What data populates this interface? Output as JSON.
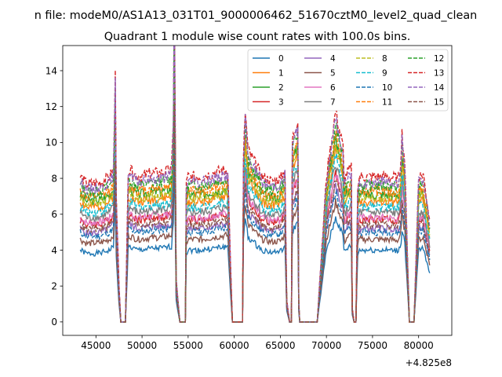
{
  "chart_data": {
    "type": "line",
    "suptitle": "n file: modeM0/AS1A13_031T01_9000006462_51670cztM0_level2_quad_clean",
    "title": "Quadrant 1 module wise count rates with 100.0s bins.",
    "xlabel": "",
    "ylabel": "",
    "x_offset_label": "+4.825e8",
    "xlim": [
      41400,
      83600
    ],
    "ylim": [
      -0.75,
      15.4
    ],
    "xticks": [
      45000,
      50000,
      55000,
      60000,
      65000,
      70000,
      75000,
      80000
    ],
    "xtick_labels": [
      "45000",
      "50000",
      "55000",
      "60000",
      "65000",
      "70000",
      "75000",
      "80000"
    ],
    "yticks": [
      0,
      2,
      4,
      6,
      8,
      10,
      12,
      14
    ],
    "ytick_labels": [
      "0",
      "2",
      "4",
      "6",
      "8",
      "10",
      "12",
      "14"
    ],
    "legend_position": "top-right",
    "legend_columns": 4,
    "profile_time": [
      43300,
      44000,
      45500,
      46500,
      46900,
      47100,
      47200,
      47500,
      47700,
      48050,
      48200,
      48350,
      48500,
      49500,
      51000,
      52500,
      53200,
      53400,
      53500,
      53600,
      53700,
      54100,
      54300,
      54700,
      54800,
      55000,
      56500,
      58000,
      59300,
      59700,
      59800,
      60800,
      60900,
      61000,
      61200,
      61500,
      63000,
      64000,
      65000,
      65300,
      65500,
      65700,
      66000,
      66200,
      66300,
      66900,
      67000,
      67100,
      67200,
      67500,
      69000,
      70000,
      71000,
      71800,
      71900,
      72000,
      72200,
      72700,
      72800,
      73000,
      73200,
      73400,
      73600,
      75000,
      76500,
      77800,
      78100,
      78200,
      78500,
      79000,
      79100,
      79300,
      79500,
      80000,
      80500,
      81200
    ],
    "profile_rel": [
      1.0,
      0.95,
      0.96,
      1.0,
      1.05,
      1.7,
      0.9,
      0.25,
      0.0,
      0.0,
      0.0,
      0.5,
      1.05,
      1.0,
      1.02,
      1.03,
      1.05,
      1.4,
      2.3,
      1.4,
      0.3,
      0.0,
      0.0,
      0.0,
      0.95,
      1.0,
      1.0,
      1.03,
      1.05,
      0.2,
      0.0,
      0.0,
      0.0,
      1.12,
      1.45,
      1.18,
      1.0,
      0.97,
      0.98,
      1.02,
      1.06,
      0.15,
      0.0,
      0.0,
      1.25,
      1.4,
      0.15,
      0.0,
      0.0,
      0.0,
      0.0,
      1.0,
      1.45,
      1.2,
      1.0,
      0.98,
      1.02,
      1.06,
      0.1,
      0.0,
      0.0,
      0.95,
      1.0,
      1.0,
      1.0,
      0.99,
      1.1,
      1.3,
      1.1,
      0.0,
      0.0,
      0.0,
      0.0,
      1.0,
      1.02,
      0.7
    ],
    "series": [
      {
        "name": "0",
        "color": "#1f77b4",
        "style": "solid",
        "level": 4.0
      },
      {
        "name": "1",
        "color": "#ff7f0e",
        "style": "solid",
        "level": 6.7
      },
      {
        "name": "2",
        "color": "#2ca02c",
        "style": "solid",
        "level": 7.1
      },
      {
        "name": "3",
        "color": "#d62728",
        "style": "solid",
        "level": 5.7
      },
      {
        "name": "4",
        "color": "#9467bd",
        "style": "solid",
        "level": 5.2
      },
      {
        "name": "5",
        "color": "#8c564b",
        "style": "solid",
        "level": 4.6
      },
      {
        "name": "6",
        "color": "#e377c2",
        "style": "solid",
        "level": 5.8
      },
      {
        "name": "7",
        "color": "#7f7f7f",
        "style": "solid",
        "level": 6.1
      },
      {
        "name": "8",
        "color": "#bcbd22",
        "style": "dashed",
        "level": 6.9
      },
      {
        "name": "9",
        "color": "#17becf",
        "style": "dashed",
        "level": 6.4
      },
      {
        "name": "10",
        "color": "#1f77b4",
        "style": "dashed",
        "level": 5.0
      },
      {
        "name": "11",
        "color": "#ff7f0e",
        "style": "dashed",
        "level": 7.3
      },
      {
        "name": "12",
        "color": "#2ca02c",
        "style": "dashed",
        "level": 7.6
      },
      {
        "name": "13",
        "color": "#d62728",
        "style": "dashed",
        "level": 8.1
      },
      {
        "name": "14",
        "color": "#9467bd",
        "style": "dashed",
        "level": 7.8
      },
      {
        "name": "15",
        "color": "#8c564b",
        "style": "dashed",
        "level": 5.4
      }
    ]
  }
}
